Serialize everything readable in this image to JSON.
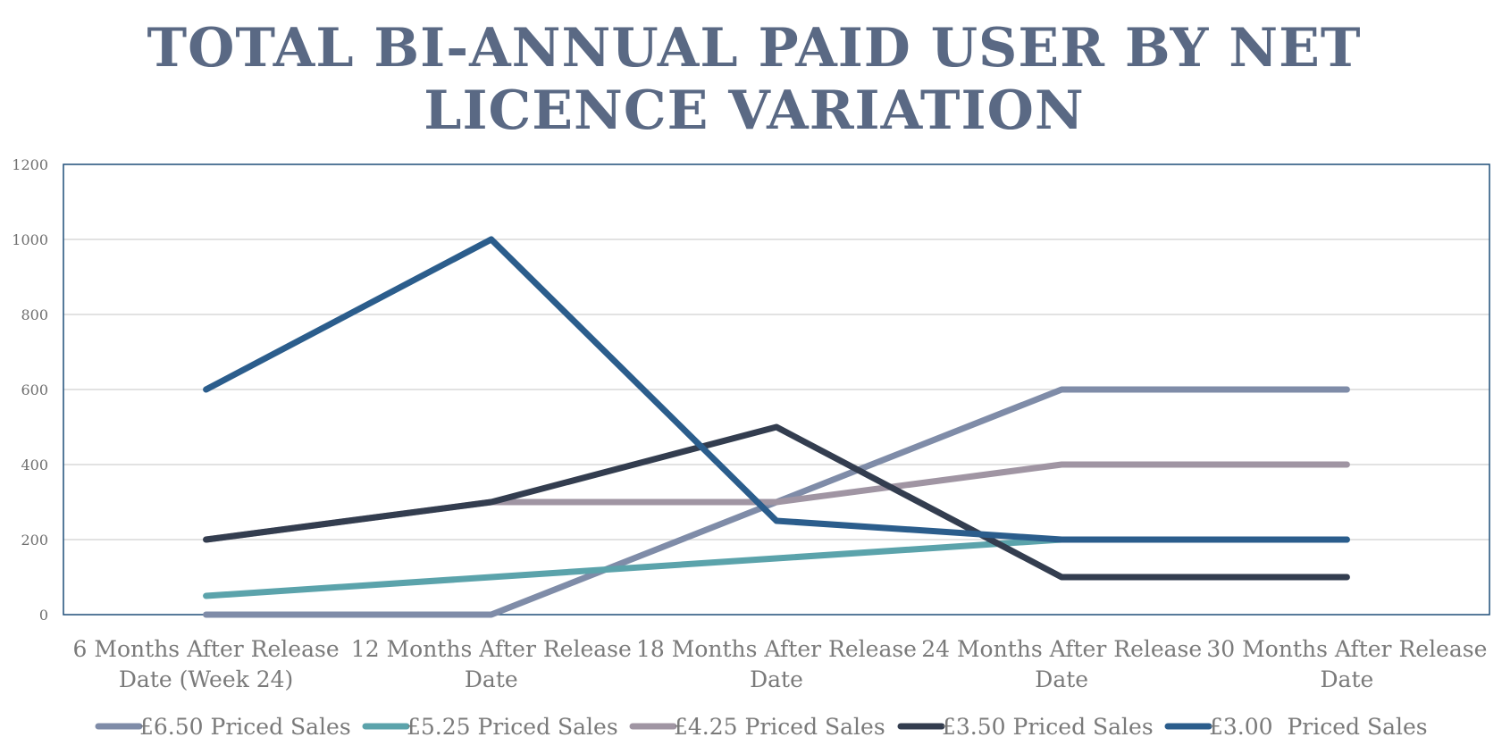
{
  "chart_data": {
    "type": "line",
    "title_lines": [
      "TOTAL BI-ANNUAL PAID USER BY NET",
      "LICENCE VARIATION"
    ],
    "categories": [
      [
        "6 Months After Release",
        "Date (Week 24)"
      ],
      [
        "12 Months After Release",
        "Date"
      ],
      [
        "18 Months After Release",
        "Date"
      ],
      [
        "24 Months After Release",
        "Date"
      ],
      [
        "30 Months After Release",
        "Date"
      ]
    ],
    "ylim": [
      0,
      1200
    ],
    "yticks": [
      "0",
      "200",
      "400",
      "600",
      "800",
      "1000",
      "1200"
    ],
    "grid": true,
    "legend_position": "bottom",
    "series": [
      {
        "name": "£6.50 Priced Sales",
        "color": "#7f8ca8",
        "values": [
          0,
          0,
          300,
          600,
          600
        ]
      },
      {
        "name": "£5.25 Priced Sales",
        "color": "#5ba3ab",
        "values": [
          50,
          100,
          150,
          200,
          200
        ]
      },
      {
        "name": "£4.25 Priced Sales",
        "color": "#a095a3",
        "values": [
          200,
          300,
          300,
          400,
          400
        ]
      },
      {
        "name": "£3.50 Priced Sales",
        "color": "#333d4f",
        "values": [
          200,
          300,
          500,
          100,
          100
        ]
      },
      {
        "name": "£3.00  Priced Sales",
        "color": "#2b5d8c",
        "values": [
          600,
          1000,
          250,
          200,
          200
        ]
      }
    ]
  }
}
